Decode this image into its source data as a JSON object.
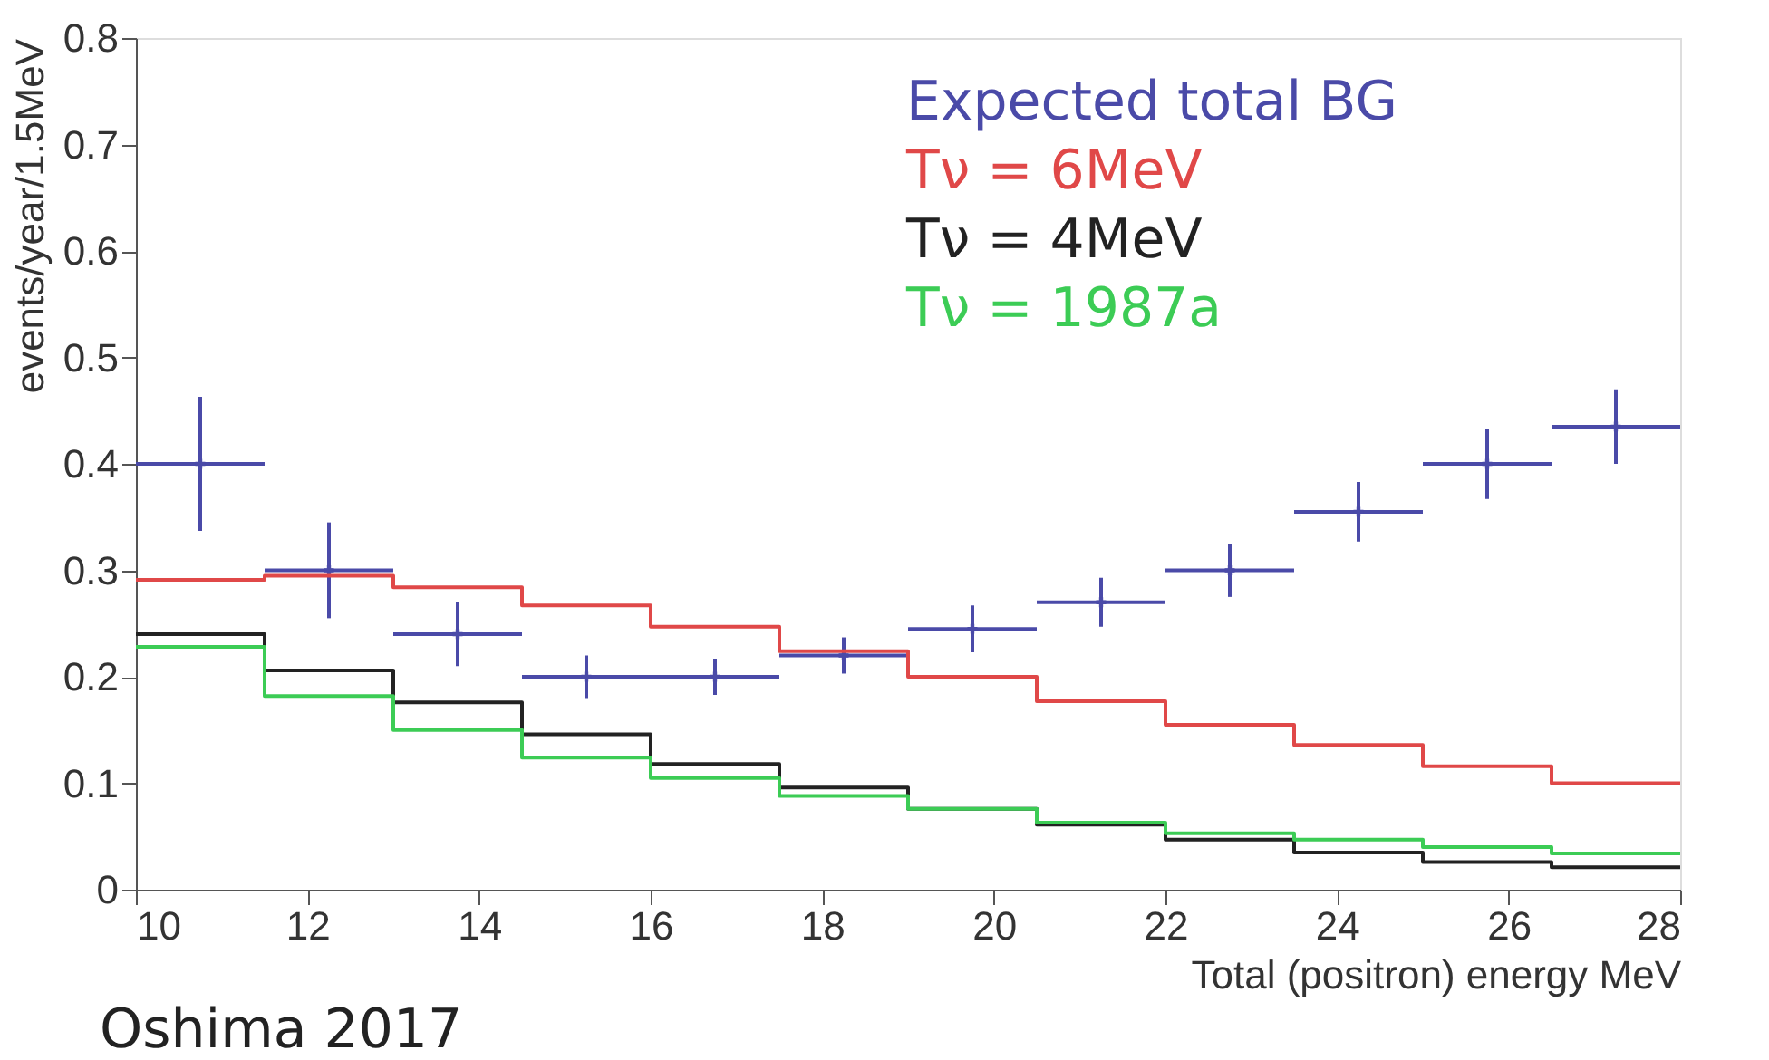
{
  "chart_data": {
    "type": "histogram",
    "xlabel": "Total (positron) energy  MeV",
    "ylabel": "events/year/1.5MeV",
    "bins": [
      10,
      11.5,
      13,
      14.5,
      16,
      17.5,
      19,
      20.5,
      22,
      23.5,
      25,
      26.5,
      28
    ],
    "series": [
      {
        "name": "Expected total BG",
        "type": "scatter",
        "color": "#4a4aa8",
        "marker": "cross",
        "x": [
          10.75,
          12.25,
          13.75,
          15.25,
          16.75,
          18.25,
          19.75,
          21.25,
          22.75,
          24.25,
          25.75,
          27.25
        ],
        "values": [
          0.4,
          0.3,
          0.24,
          0.2,
          0.2,
          0.22,
          0.245,
          0.27,
          0.3,
          0.355,
          0.4,
          0.435
        ],
        "errors": [
          0.063,
          0.045,
          0.03,
          0.02,
          0.017,
          0.017,
          0.022,
          0.023,
          0.025,
          0.028,
          0.033,
          0.035
        ],
        "xerrors": [
          0.75,
          0.75,
          0.75,
          0.75,
          0.75,
          0.75,
          0.75,
          0.75,
          0.75,
          0.75,
          0.75,
          0.75
        ]
      },
      {
        "name": "Tν = 6MeV",
        "color": "#e04848",
        "values": [
          0.291,
          0.295,
          0.284,
          0.267,
          0.247,
          0.224,
          0.2,
          0.177,
          0.155,
          0.136,
          0.116,
          0.1
        ]
      },
      {
        "name": "Tν = 4MeV",
        "color": "#222222",
        "values": [
          0.24,
          0.206,
          0.176,
          0.146,
          0.118,
          0.096,
          0.076,
          0.061,
          0.047,
          0.035,
          0.026,
          0.021
        ]
      },
      {
        "name": "Tν = 1987a",
        "color": "#3ccc55",
        "values": [
          0.228,
          0.182,
          0.15,
          0.124,
          0.105,
          0.088,
          0.076,
          0.063,
          0.053,
          0.047,
          0.04,
          0.034
        ]
      }
    ],
    "xlim": [
      10,
      28
    ],
    "xticks": [
      10,
      12,
      14,
      16,
      18,
      20,
      22,
      24,
      26,
      28
    ],
    "ylim": [
      0,
      0.8
    ],
    "yticks": [
      0,
      0.1,
      0.2,
      0.3,
      0.4,
      0.5,
      0.6,
      0.7,
      0.8
    ],
    "grid": false,
    "legend": "top right",
    "annotations": [
      "Oshima 2017"
    ]
  }
}
